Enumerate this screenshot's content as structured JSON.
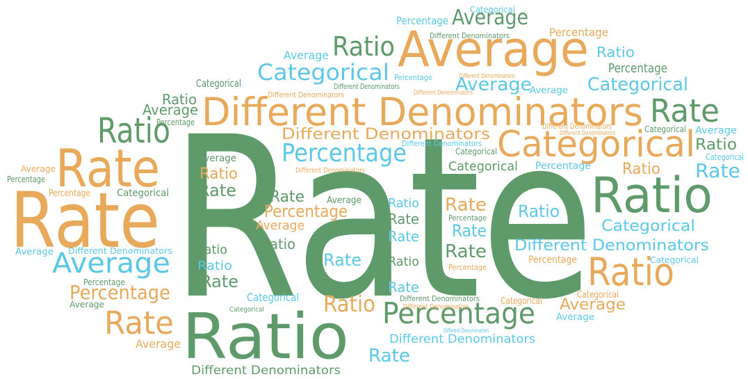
{
  "words": [
    {
      "text": "Rate",
      "color": "#5e9a6a"
    },
    {
      "text": "Ratio",
      "color": "#5e9a6a"
    },
    {
      "text": "Different Denominators",
      "color": "#e8a95b"
    },
    {
      "text": "Average",
      "color": "#e8a95b"
    },
    {
      "text": "Categorical",
      "color": "#e8a95b"
    },
    {
      "text": "Rate",
      "color": "#e8a95b"
    },
    {
      "text": "Rate",
      "color": "#e8a95b"
    },
    {
      "text": "Ratio",
      "color": "#5e9a6a"
    },
    {
      "text": "Rate",
      "color": "#5e9a6a"
    },
    {
      "text": "Ratio",
      "color": "#5e9a6a"
    },
    {
      "text": "Ratio",
      "color": "#e8a95b"
    },
    {
      "text": "Categorical",
      "color": "#5bc8e6"
    },
    {
      "text": "Ratio",
      "color": "#5e9a6a"
    },
    {
      "text": "Percentage",
      "color": "#5bc8e6"
    },
    {
      "text": "Different Denominators",
      "color": "#e8a95b"
    },
    {
      "text": "Average",
      "color": "#5bc8e6"
    },
    {
      "text": "Percentage",
      "color": "#e8a95b"
    },
    {
      "text": "Rate",
      "color": "#e8a95b"
    },
    {
      "text": "Percentage",
      "color": "#5e9a6a"
    },
    {
      "text": "Ratio",
      "color": "#e8a95b"
    },
    {
      "text": "Average",
      "color": "#e8a95b"
    },
    {
      "text": "Different Denominators",
      "color": "#5bc8e6"
    },
    {
      "text": "Categorical",
      "color": "#5bc8e6"
    },
    {
      "text": "Categorical",
      "color": "#5bc8e6"
    },
    {
      "text": "Average",
      "color": "#5bc8e6"
    },
    {
      "text": "Rate",
      "color": "#5bc8e6"
    },
    {
      "text": "Ratio",
      "color": "#5e9a6a"
    },
    {
      "text": "Ratio",
      "color": "#e8a95b"
    },
    {
      "text": "Percentage",
      "color": "#5bc8e6"
    },
    {
      "text": "Categorical",
      "color": "#5e9a6a"
    },
    {
      "text": "Percentage",
      "color": "#5e9a6a"
    },
    {
      "text": "Ratio",
      "color": "#5bc8e6"
    },
    {
      "text": "Average",
      "color": "#5e9a6a"
    },
    {
      "text": "Percentage",
      "color": "#5bc8e6"
    },
    {
      "text": "Categorical",
      "color": "#5bc8e6"
    },
    {
      "text": "Different Denominators",
      "color": "#5e9a6a"
    },
    {
      "text": "Percentage",
      "color": "#e8a95b"
    },
    {
      "text": "Average",
      "color": "#5bc8e6"
    },
    {
      "text": "Categorical",
      "color": "#5e9a6a"
    },
    {
      "text": "Ratio",
      "color": "#5e9a6a"
    },
    {
      "text": "Average",
      "color": "#5e9a6a"
    },
    {
      "text": "Percentage",
      "color": "#5e9a6a"
    },
    {
      "text": "Different Denominators",
      "color": "#e8a95b"
    },
    {
      "text": "Different Denominators",
      "color": "#5e9a6a"
    },
    {
      "text": "Percentage",
      "color": "#5bc8e6"
    },
    {
      "text": "Average",
      "color": "#5bc8e6"
    },
    {
      "text": "Different Denominators",
      "color": "#e8a95b"
    },
    {
      "text": "Different Denominators",
      "color": "#e8a95b"
    },
    {
      "text": "Different Denominators",
      "color": "#e8a95b"
    },
    {
      "text": "Different Denominators",
      "color": "#e8a95b"
    },
    {
      "text": "Categorical",
      "color": "#5e9a6a"
    },
    {
      "text": "Average",
      "color": "#5bc8e6"
    },
    {
      "text": "Categorical",
      "color": "#5bc8e6"
    },
    {
      "text": "Different Denominators",
      "color": "#5bc8e6"
    },
    {
      "text": "Categorical",
      "color": "#5e9a6a"
    },
    {
      "text": "Different Denominators",
      "color": "#e8a95b"
    },
    {
      "text": "Average",
      "color": "#5e9a6a"
    },
    {
      "text": "Ratio",
      "color": "#e8a95b"
    },
    {
      "text": "Rate",
      "color": "#5e9a6a"
    },
    {
      "text": "Average",
      "color": "#e8a95b"
    },
    {
      "text": "Percentage",
      "color": "#5e9a6a"
    },
    {
      "text": "Percentage",
      "color": "#e8a95b"
    },
    {
      "text": "Categorical",
      "color": "#5e9a6a"
    },
    {
      "text": "Rate",
      "color": "#5e9a6a"
    },
    {
      "text": "Percentage",
      "color": "#e8a95b"
    },
    {
      "text": "Average",
      "color": "#5e9a6a"
    },
    {
      "text": "Average",
      "color": "#e8a95b"
    },
    {
      "text": "Ratio",
      "color": "#5e9a6a"
    },
    {
      "text": "Ratio",
      "color": "#5bc8e6"
    },
    {
      "text": "Rate",
      "color": "#5e9a6a"
    },
    {
      "text": "Rate",
      "color": "#5bc8e6"
    },
    {
      "text": "Ratio",
      "color": "#5e9a6a"
    },
    {
      "text": "Rate",
      "color": "#5bc8e6"
    },
    {
      "text": "Rate",
      "color": "#e8a95b"
    },
    {
      "text": "Percentage",
      "color": "#5e9a6a"
    },
    {
      "text": "Rate",
      "color": "#5bc8e6"
    },
    {
      "text": "Rate",
      "color": "#5e9a6a"
    },
    {
      "text": "Percentage",
      "color": "#e8a95b"
    },
    {
      "text": "Ratio",
      "color": "#5bc8e6"
    },
    {
      "text": "Rate",
      "color": "#5bc8e6"
    },
    {
      "text": "Ratio",
      "color": "#5e9a6a"
    },
    {
      "text": "Ratio",
      "color": "#5bc8e6"
    },
    {
      "text": "Rate",
      "color": "#5e9a6a"
    },
    {
      "text": "Average",
      "color": "#5bc8e6"
    },
    {
      "text": "Different Denominators",
      "color": "#5bc8e6"
    },
    {
      "text": "Percentage",
      "color": "#e8a95b"
    },
    {
      "text": "Categorical",
      "color": "#5bc8e6"
    },
    {
      "text": "Percentage",
      "color": "#5e9a6a"
    },
    {
      "text": "Average",
      "color": "#5e9a6a"
    },
    {
      "text": "Categorical",
      "color": "#5bc8e6"
    },
    {
      "text": "Categorical",
      "color": "#5e9a6a"
    },
    {
      "text": "Average",
      "color": "#e8a95b"
    },
    {
      "text": "Different Denominators",
      "color": "#5e9a6a"
    },
    {
      "text": "Different Denominators",
      "color": "#5bc8e6"
    },
    {
      "text": "Rate",
      "color": "#5bc8e6"
    },
    {
      "text": "Different Denominators",
      "color": "#5e9a6a"
    },
    {
      "text": "Different Denominators",
      "color": "#e8a95b"
    },
    {
      "text": "Categorical",
      "color": "#e8a95b"
    },
    {
      "text": "Categorical",
      "color": "#e8a95b"
    },
    {
      "text": "Average",
      "color": "#5bc8e6"
    },
    {
      "text": "Different Denominators",
      "color": "#5bc8e6"
    }
  ]
}
